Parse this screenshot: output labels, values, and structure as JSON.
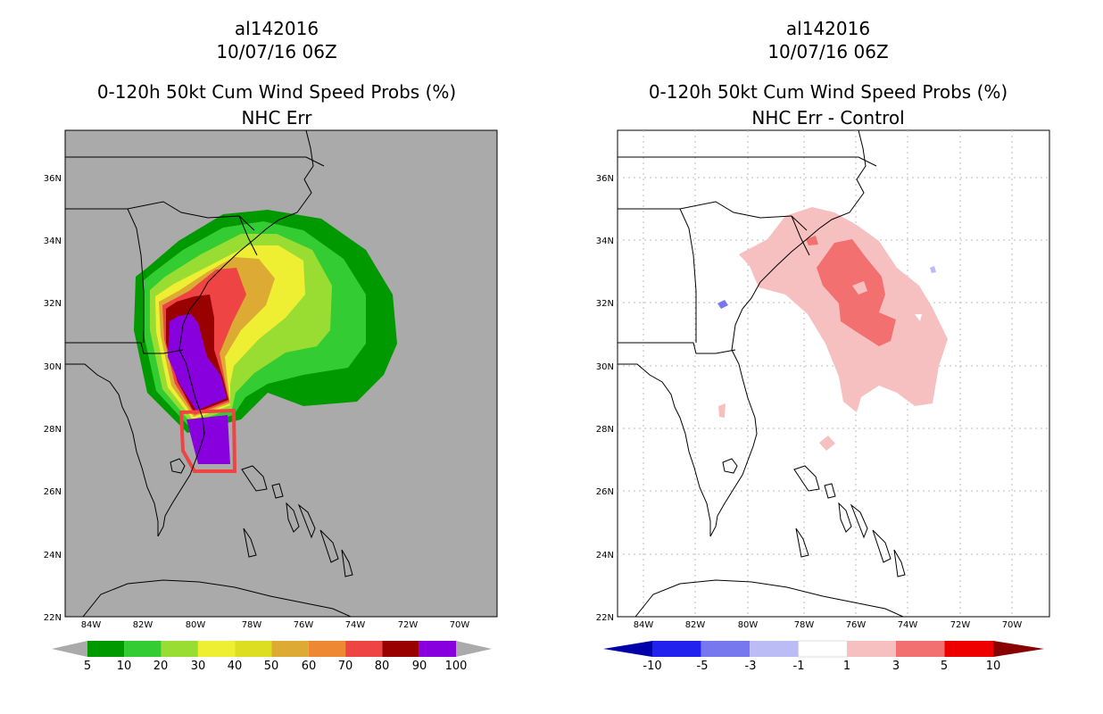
{
  "left": {
    "storm_id": "al142016",
    "datetime": "10/07/16 06Z",
    "product": "0-120h 50kt Cum Wind Speed Probs (%)",
    "subtitle": "NHC Err",
    "lat_labels": [
      "36N",
      "34N",
      "32N",
      "30N",
      "28N",
      "26N",
      "24N",
      "22N"
    ],
    "lon_labels": [
      "84W",
      "82W",
      "80W",
      "78W",
      "76W",
      "74W",
      "72W",
      "70W"
    ],
    "colorbar": {
      "labels": [
        "5",
        "10",
        "20",
        "30",
        "40",
        "50",
        "60",
        "70",
        "80",
        "90",
        "100"
      ],
      "colors": [
        "#009900",
        "#33cc33",
        "#99dd33",
        "#eeee33",
        "#dddd22",
        "#ddaa33",
        "#ee8833",
        "#ee4444",
        "#990000",
        "#8800dd"
      ]
    },
    "background": "#aaaaaa"
  },
  "right": {
    "storm_id": "al142016",
    "datetime": "10/07/16 06Z",
    "product": "0-120h 50kt Cum Wind Speed Probs (%)",
    "subtitle": "NHC Err - Control",
    "lat_labels": [
      "36N",
      "34N",
      "32N",
      "30N",
      "28N",
      "26N",
      "24N",
      "22N"
    ],
    "lon_labels": [
      "84W",
      "82W",
      "80W",
      "78W",
      "76W",
      "74W",
      "72W",
      "70W"
    ],
    "colorbar": {
      "labels": [
        "-10",
        "-5",
        "-3",
        "-1",
        "1",
        "3",
        "5",
        "10"
      ],
      "colors": [
        "#0000aa",
        "#2222ee",
        "#7777ee",
        "#bbbbf5",
        "#ffffff",
        "#f7c0c0",
        "#f27070",
        "#ee0000",
        "#880000"
      ]
    },
    "background": "#ffffff"
  }
}
